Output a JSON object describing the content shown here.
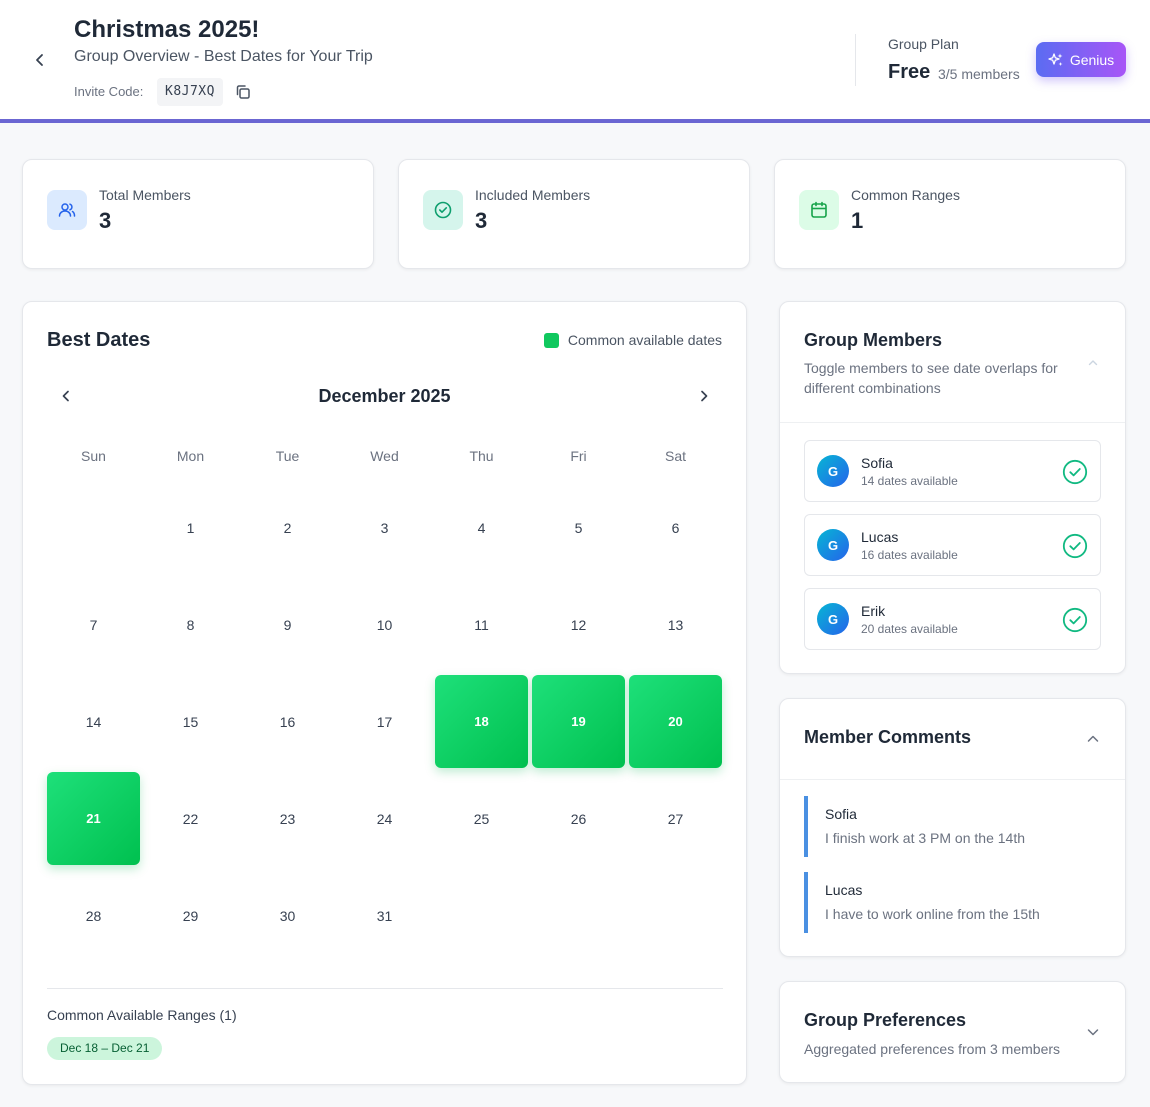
{
  "header": {
    "title": "Christmas 2025!",
    "subtitle": "Group Overview - Best Dates for Your Trip",
    "invite_label": "Invite Code:",
    "invite_code": "K8J7XQ",
    "plan_label": "Group Plan",
    "plan_name": "Free",
    "plan_members": "3/5 members",
    "genius_label": "Genius"
  },
  "stats": [
    {
      "label": "Total Members",
      "value": "3",
      "icon": "users-icon",
      "color": "#2563eb",
      "bg": "#dbeafe"
    },
    {
      "label": "Included Members",
      "value": "3",
      "icon": "check-circle-icon",
      "color": "#0e9f6e",
      "bg": "#d5f5ec"
    },
    {
      "label": "Common Ranges",
      "value": "1",
      "icon": "calendar-icon",
      "color": "#16a34a",
      "bg": "#dcfce7"
    }
  ],
  "calendar": {
    "title": "Best Dates",
    "legend_label": "Common available dates",
    "month_title": "December 2025",
    "weekdays": [
      "Sun",
      "Mon",
      "Tue",
      "Wed",
      "Thu",
      "Fri",
      "Sat"
    ],
    "weeks": [
      [
        "",
        "1",
        "2",
        "3",
        "4",
        "5",
        "6"
      ],
      [
        "7",
        "8",
        "9",
        "10",
        "11",
        "12",
        "13"
      ],
      [
        "14",
        "15",
        "16",
        "17",
        "18",
        "19",
        "20"
      ],
      [
        "21",
        "22",
        "23",
        "24",
        "25",
        "26",
        "27"
      ],
      [
        "28",
        "29",
        "30",
        "31",
        "",
        "",
        ""
      ]
    ],
    "common_dates": [
      "18",
      "19",
      "20",
      "21"
    ],
    "ranges_title": "Common Available Ranges (1)",
    "ranges": [
      "Dec 18 – Dec 21"
    ]
  },
  "members_panel": {
    "title": "Group Members",
    "description": "Toggle members to see date overlaps for different combinations",
    "members": [
      {
        "initial": "G",
        "name": "Sofia",
        "dates": "14 dates available"
      },
      {
        "initial": "G",
        "name": "Lucas",
        "dates": "16 dates available"
      },
      {
        "initial": "G",
        "name": "Erik",
        "dates": "20 dates available"
      }
    ]
  },
  "comments_panel": {
    "title": "Member Comments",
    "comments": [
      {
        "author": "Sofia",
        "text": "I finish work at 3 PM on the 14th"
      },
      {
        "author": "Lucas",
        "text": "I have to work online from the 15th"
      }
    ]
  },
  "preferences_panel": {
    "title": "Group Preferences",
    "description": "Aggregated preferences from 3 members"
  }
}
